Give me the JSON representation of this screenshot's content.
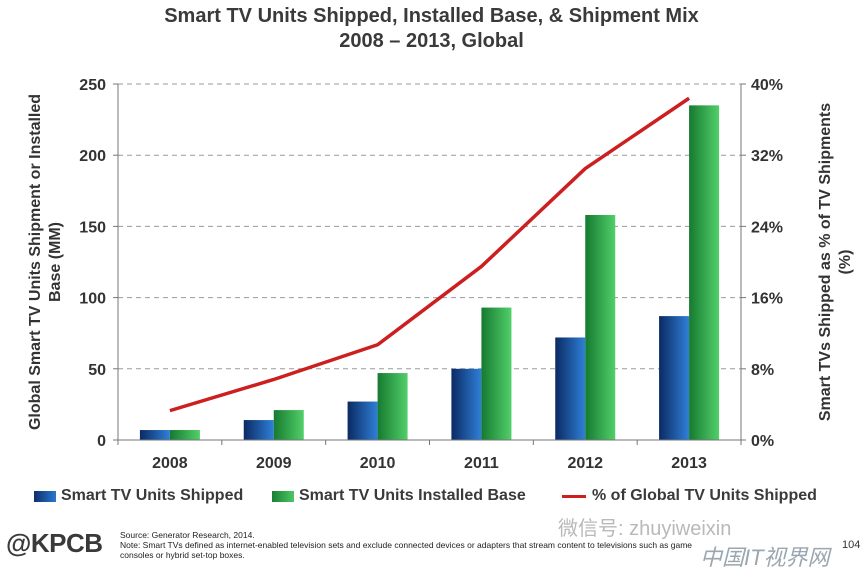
{
  "chart_data": {
    "type": "bar",
    "title": "Smart TV Units Shipped, Installed Base, & Shipment Mix",
    "subtitle": "2008 – 2013, Global",
    "categories": [
      "2008",
      "2009",
      "2010",
      "2011",
      "2012",
      "2013"
    ],
    "series": [
      {
        "name": "Smart TV Units Shipped",
        "type": "bar",
        "axis": "left",
        "color": "#1f5aa6",
        "values": [
          7,
          14,
          27,
          50,
          72,
          87
        ]
      },
      {
        "name": "Smart TV Units Installed Base",
        "type": "bar",
        "axis": "left",
        "color": "#2fae4a",
        "values": [
          7,
          21,
          47,
          93,
          158,
          235
        ]
      },
      {
        "name": "% of Global TV Units Shipped",
        "type": "line",
        "axis": "right",
        "color": "#cc1f1f",
        "values": [
          3.3,
          6.8,
          10.7,
          19.5,
          30.5,
          38.4
        ]
      }
    ],
    "ylabel": "Global Smart TV Units Shipment or Installed Base (MM)",
    "ylabel_lines": [
      "Global Smart TV Units Shipment or Installed",
      "Base (MM)"
    ],
    "y2label": "Smart TVs Shipped as % of TV Shipments (%)",
    "y2label_lines": [
      "Smart TVs Shipped as % of TV Shipments",
      "(%)"
    ],
    "ylim": [
      0,
      250
    ],
    "y2lim": [
      0,
      40
    ],
    "yticks": [
      "0",
      "50",
      "100",
      "150",
      "200",
      "250"
    ],
    "y2ticks": [
      "0%",
      "8%",
      "16%",
      "24%",
      "32%",
      "40%"
    ],
    "grid": true,
    "legend": "bottom"
  },
  "footer": {
    "logo": "@KPCB",
    "source": "Source: Generator Research, 2014.",
    "note": "Note: Smart TVs defined as internet-enabled television sets and exclude connected devices or adapters that stream content to televisions such as game",
    "note2": "consoles or hybrid set-top boxes.",
    "watermark": "微信号: zhuyiweixin",
    "watermark2": "中国IT视界网",
    "page": "104"
  }
}
